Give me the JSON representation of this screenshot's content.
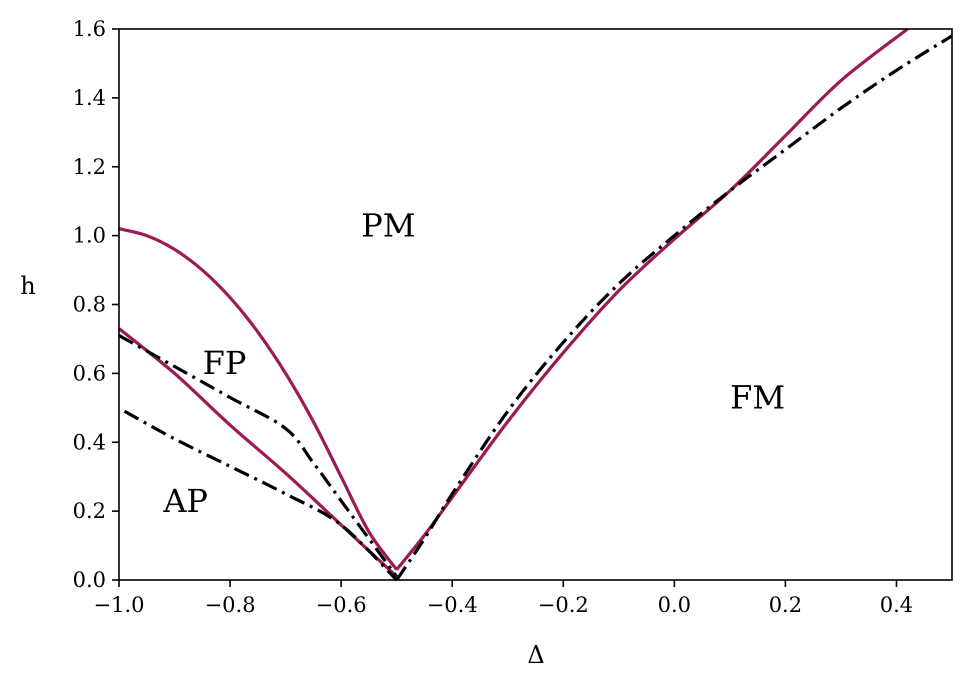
{
  "chart_data": {
    "type": "line",
    "xlabel": "Δ",
    "ylabel": "h",
    "xlim": [
      -1.0,
      0.5
    ],
    "ylim": [
      0.0,
      1.6
    ],
    "xticks": [
      -1.0,
      -0.8,
      -0.6,
      -0.4,
      -0.2,
      0.0,
      0.2,
      0.4
    ],
    "yticks": [
      0.0,
      0.2,
      0.4,
      0.6,
      0.8,
      1.0,
      1.2,
      1.4,
      1.6
    ],
    "xtick_labels": [
      "−1.0",
      "−0.8",
      "−0.6",
      "−0.4",
      "−0.2",
      "0.0",
      "0.2",
      "0.4"
    ],
    "ytick_labels": [
      "0.0",
      "0.2",
      "0.4",
      "0.6",
      "0.8",
      "1.0",
      "1.2",
      "1.4",
      "1.6"
    ],
    "grid": false,
    "colors": {
      "solid": "#9b1b52",
      "dashdot": "#000000"
    },
    "series": [
      {
        "style": "solid",
        "points": [
          [
            -1.0,
            1.02
          ],
          [
            -0.95,
            1.0
          ],
          [
            -0.9,
            0.96
          ],
          [
            -0.85,
            0.9
          ],
          [
            -0.8,
            0.82
          ],
          [
            -0.75,
            0.72
          ],
          [
            -0.7,
            0.6
          ],
          [
            -0.65,
            0.46
          ],
          [
            -0.6,
            0.3
          ],
          [
            -0.55,
            0.14
          ],
          [
            -0.5,
            0.03
          ]
        ]
      },
      {
        "style": "solid",
        "points": [
          [
            -1.0,
            0.73
          ],
          [
            -0.9,
            0.6
          ],
          [
            -0.8,
            0.45
          ],
          [
            -0.7,
            0.31
          ],
          [
            -0.6,
            0.16
          ],
          [
            -0.5,
            0.01
          ]
        ]
      },
      {
        "style": "solid",
        "points": [
          [
            -0.5,
            0.03
          ],
          [
            -0.45,
            0.13
          ],
          [
            -0.4,
            0.24
          ],
          [
            -0.3,
            0.46
          ],
          [
            -0.2,
            0.66
          ],
          [
            -0.1,
            0.84
          ],
          [
            0.0,
            0.99
          ],
          [
            0.1,
            1.13
          ],
          [
            0.2,
            1.29
          ],
          [
            0.3,
            1.45
          ],
          [
            0.42,
            1.6
          ]
        ]
      },
      {
        "style": "dashdot",
        "points": [
          [
            -1.0,
            0.71
          ],
          [
            -0.9,
            0.62
          ],
          [
            -0.8,
            0.53
          ],
          [
            -0.7,
            0.44
          ],
          [
            -0.65,
            0.34
          ],
          [
            -0.6,
            0.23
          ],
          [
            -0.55,
            0.12
          ],
          [
            -0.5,
            0.01
          ]
        ]
      },
      {
        "style": "dashdot",
        "points": [
          [
            -0.99,
            0.49
          ],
          [
            -0.9,
            0.41
          ],
          [
            -0.8,
            0.33
          ],
          [
            -0.7,
            0.25
          ],
          [
            -0.6,
            0.16
          ],
          [
            -0.5,
            0.0
          ]
        ]
      },
      {
        "style": "dashdot",
        "points": [
          [
            -0.5,
            0.0
          ],
          [
            -0.45,
            0.12
          ],
          [
            -0.4,
            0.25
          ],
          [
            -0.3,
            0.49
          ],
          [
            -0.2,
            0.69
          ],
          [
            -0.1,
            0.86
          ],
          [
            0.0,
            1.0
          ],
          [
            0.1,
            1.13
          ],
          [
            0.2,
            1.25
          ],
          [
            0.3,
            1.37
          ],
          [
            0.4,
            1.48
          ],
          [
            0.5,
            1.58
          ]
        ]
      }
    ],
    "annotations": [
      {
        "text": "PM",
        "x": -0.515,
        "y": 1.03
      },
      {
        "text": "FP",
        "x": -0.81,
        "y": 0.63
      },
      {
        "text": "AP",
        "x": -0.88,
        "y": 0.23
      },
      {
        "text": "FM",
        "x": 0.15,
        "y": 0.53
      }
    ]
  }
}
